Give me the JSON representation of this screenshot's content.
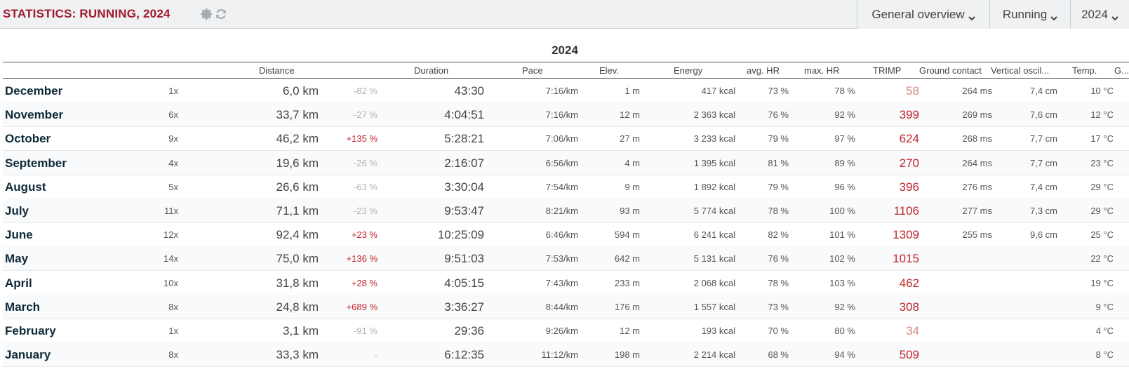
{
  "header": {
    "title": "STATISTICS: RUNNING, 2024",
    "dropdowns": {
      "overview": "General overview",
      "sport": "Running",
      "year": "2024"
    },
    "icons": [
      "gear-icon",
      "refresh-icon",
      "chevron-down-icon"
    ],
    "colors": {
      "title": "#a0192d",
      "trimp": "#c0282d",
      "positive_change": "#c0282d"
    }
  },
  "table": {
    "caption": "2024",
    "columns": {
      "distance": "Distance",
      "duration": "Duration",
      "pace": "Pace",
      "elev": "Elev.",
      "energy": "Energy",
      "avg_hr": "avg. HR",
      "max_hr": "max. HR",
      "trimp": "TRIMP",
      "ground_contact": "Ground contact",
      "vertical_osc": "Vertical oscil...",
      "temp": "Temp.",
      "extra": "G..."
    },
    "rows": [
      {
        "month": "December",
        "count": "1x",
        "distance": "6,0 km",
        "change": "-82 %",
        "duration": "43:30",
        "pace": "7:16/km",
        "elev": "1 m",
        "energy": "417 kcal",
        "avg_hr": "73 %",
        "max_hr": "78 %",
        "trimp": "58",
        "ground_contact": "264 ms",
        "vertical_osc": "7,4 cm",
        "temp": "10 °C"
      },
      {
        "month": "November",
        "count": "6x",
        "distance": "33,7 km",
        "change": "-27 %",
        "duration": "4:04:51",
        "pace": "7:16/km",
        "elev": "12 m",
        "energy": "2 363 kcal",
        "avg_hr": "76 %",
        "max_hr": "92 %",
        "trimp": "399",
        "ground_contact": "269 ms",
        "vertical_osc": "7,6 cm",
        "temp": "12 °C"
      },
      {
        "month": "October",
        "count": "9x",
        "distance": "46,2 km",
        "change": "+135 %",
        "duration": "5:28:21",
        "pace": "7:06/km",
        "elev": "27 m",
        "energy": "3 233 kcal",
        "avg_hr": "79 %",
        "max_hr": "97 %",
        "trimp": "624",
        "ground_contact": "268 ms",
        "vertical_osc": "7,7 cm",
        "temp": "17 °C"
      },
      {
        "month": "September",
        "count": "4x",
        "distance": "19,6 km",
        "change": "-26 %",
        "duration": "2:16:07",
        "pace": "6:56/km",
        "elev": "4 m",
        "energy": "1 395 kcal",
        "avg_hr": "81 %",
        "max_hr": "89 %",
        "trimp": "270",
        "ground_contact": "264 ms",
        "vertical_osc": "7,7 cm",
        "temp": "23 °C"
      },
      {
        "month": "August",
        "count": "5x",
        "distance": "26,6 km",
        "change": "-63 %",
        "duration": "3:30:04",
        "pace": "7:54/km",
        "elev": "9 m",
        "energy": "1 892 kcal",
        "avg_hr": "79 %",
        "max_hr": "96 %",
        "trimp": "396",
        "ground_contact": "276 ms",
        "vertical_osc": "7,4 cm",
        "temp": "29 °C"
      },
      {
        "month": "July",
        "count": "11x",
        "distance": "71,1 km",
        "change": "-23 %",
        "duration": "9:53:47",
        "pace": "8:21/km",
        "elev": "93 m",
        "energy": "5 774 kcal",
        "avg_hr": "78 %",
        "max_hr": "100 %",
        "trimp": "1106",
        "ground_contact": "277 ms",
        "vertical_osc": "7,3 cm",
        "temp": "29 °C"
      },
      {
        "month": "June",
        "count": "12x",
        "distance": "92,4 km",
        "change": "+23 %",
        "duration": "10:25:09",
        "pace": "6:46/km",
        "elev": "594 m",
        "energy": "6 241 kcal",
        "avg_hr": "82 %",
        "max_hr": "101 %",
        "trimp": "1309",
        "ground_contact": "255 ms",
        "vertical_osc": "9,6 cm",
        "temp": "25 °C"
      },
      {
        "month": "May",
        "count": "14x",
        "distance": "75,0 km",
        "change": "+136 %",
        "duration": "9:51:03",
        "pace": "7:53/km",
        "elev": "642 m",
        "energy": "5 131 kcal",
        "avg_hr": "76 %",
        "max_hr": "102 %",
        "trimp": "1015",
        "ground_contact": "",
        "vertical_osc": "",
        "temp": "22 °C"
      },
      {
        "month": "April",
        "count": "10x",
        "distance": "31,8 km",
        "change": "+28 %",
        "duration": "4:05:15",
        "pace": "7:43/km",
        "elev": "233 m",
        "energy": "2 068 kcal",
        "avg_hr": "78 %",
        "max_hr": "103 %",
        "trimp": "462",
        "ground_contact": "",
        "vertical_osc": "",
        "temp": "19 °C"
      },
      {
        "month": "March",
        "count": "8x",
        "distance": "24,8 km",
        "change": "+689 %",
        "duration": "3:36:27",
        "pace": "8:44/km",
        "elev": "176 m",
        "energy": "1 557 kcal",
        "avg_hr": "73 %",
        "max_hr": "92 %",
        "trimp": "308",
        "ground_contact": "",
        "vertical_osc": "",
        "temp": "9 °C"
      },
      {
        "month": "February",
        "count": "1x",
        "distance": "3,1 km",
        "change": "-91 %",
        "duration": "29:36",
        "pace": "9:26/km",
        "elev": "12 m",
        "energy": "193 kcal",
        "avg_hr": "70 %",
        "max_hr": "80 %",
        "trimp": "34",
        "ground_contact": "",
        "vertical_osc": "",
        "temp": "4 °C"
      },
      {
        "month": "January",
        "count": "8x",
        "distance": "33,3 km",
        "change": "-",
        "duration": "6:12:35",
        "pace": "11:12/km",
        "elev": "198 m",
        "energy": "2 214 kcal",
        "avg_hr": "68 %",
        "max_hr": "94 %",
        "trimp": "509",
        "ground_contact": "",
        "vertical_osc": "",
        "temp": "8 °C"
      }
    ]
  }
}
